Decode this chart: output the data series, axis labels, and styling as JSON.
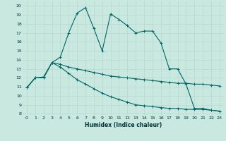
{
  "xlabel": "Humidex (Indice chaleur)",
  "bg_color": "#c8e8e0",
  "grid_color": "#b8d8d0",
  "line_color": "#006666",
  "x_ticks": [
    0,
    1,
    2,
    3,
    4,
    5,
    6,
    7,
    8,
    9,
    10,
    11,
    12,
    13,
    14,
    15,
    16,
    17,
    18,
    19,
    20,
    21,
    22,
    23
  ],
  "y_ticks": [
    8,
    9,
    10,
    11,
    12,
    13,
    14,
    15,
    16,
    17,
    18,
    19,
    20
  ],
  "ylim": [
    7.8,
    20.5
  ],
  "xlim": [
    -0.5,
    23.5
  ],
  "line1_x": [
    0,
    1,
    2,
    3,
    4,
    5,
    6,
    7,
    8,
    9,
    10,
    11,
    12,
    13,
    14,
    15,
    16,
    17,
    18,
    19,
    20,
    21,
    22,
    23
  ],
  "line1_y": [
    10.9,
    12.0,
    12.0,
    13.7,
    14.3,
    17.0,
    19.2,
    19.8,
    17.5,
    15.0,
    19.1,
    18.5,
    17.8,
    17.0,
    17.2,
    17.2,
    15.9,
    13.0,
    13.0,
    11.3,
    8.6,
    8.6,
    8.4,
    8.3
  ],
  "line2_x": [
    0,
    1,
    2,
    3,
    4,
    5,
    6,
    7,
    8,
    9,
    10,
    11,
    12,
    13,
    14,
    15,
    16,
    17,
    18,
    19,
    20,
    21,
    22,
    23
  ],
  "line2_y": [
    10.9,
    12.0,
    12.1,
    13.7,
    13.5,
    13.2,
    13.0,
    12.8,
    12.6,
    12.4,
    12.2,
    12.1,
    12.0,
    11.9,
    11.8,
    11.7,
    11.6,
    11.5,
    11.4,
    11.4,
    11.3,
    11.3,
    11.2,
    11.1
  ],
  "line3_x": [
    0,
    1,
    2,
    3,
    4,
    5,
    6,
    7,
    8,
    9,
    10,
    11,
    12,
    13,
    14,
    15,
    16,
    17,
    18,
    19,
    20,
    21,
    22,
    23
  ],
  "line3_y": [
    10.9,
    12.0,
    12.0,
    13.7,
    13.2,
    12.5,
    11.8,
    11.3,
    10.8,
    10.3,
    9.9,
    9.6,
    9.3,
    9.0,
    8.9,
    8.8,
    8.7,
    8.6,
    8.6,
    8.5,
    8.5,
    8.5,
    8.4,
    8.3
  ]
}
